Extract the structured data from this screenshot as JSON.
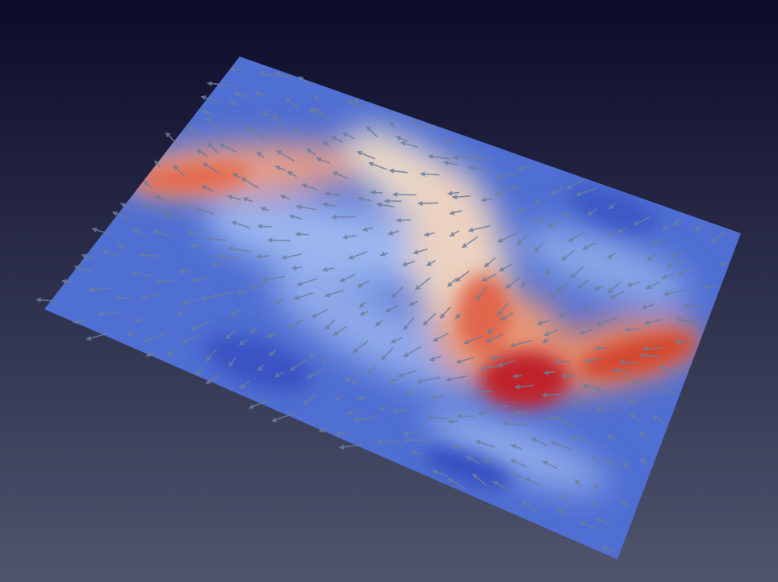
{
  "view": {
    "background_top": "#0b0c2b",
    "background_bottom": "#50546c"
  },
  "colormap": {
    "name": "Cool to Warm",
    "low": "#3b4cc0",
    "mid": "#dddddd",
    "high": "#b40426"
  },
  "glyphs": {
    "type": "arrow",
    "color": "#6b7f9a"
  }
}
